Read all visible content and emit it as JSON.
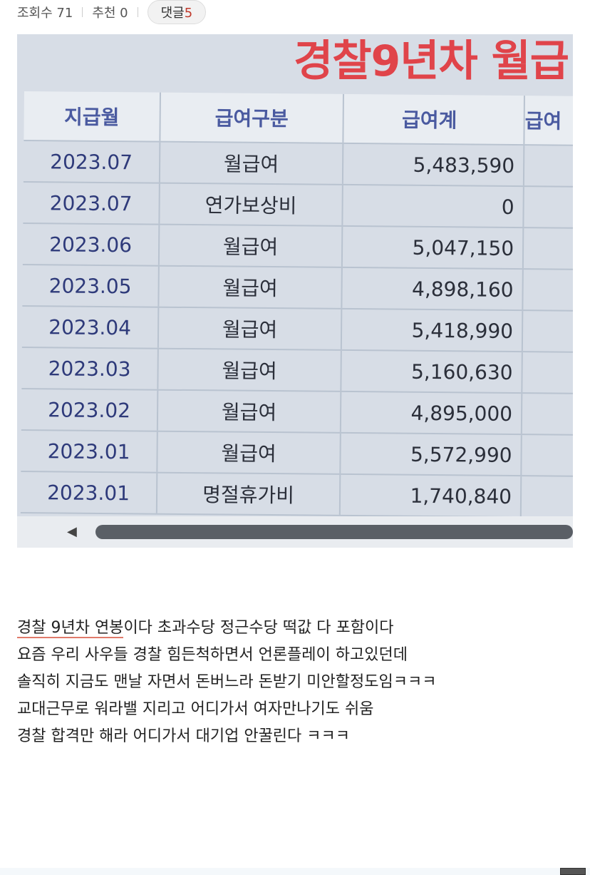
{
  "meta": {
    "views_label": "조회수 71",
    "recommend_label": "추천 0",
    "comments_label": "댓글",
    "comments_count": "5"
  },
  "photo": {
    "overlay_title": "경찰9년차 월급",
    "headers": [
      "지급월",
      "급여구분",
      "급여계",
      "급여"
    ],
    "rows": [
      [
        "2023.07",
        "월급여",
        "5,483,590"
      ],
      [
        "2023.07",
        "연가보상비",
        "0"
      ],
      [
        "2023.06",
        "월급여",
        "5,047,150"
      ],
      [
        "2023.05",
        "월급여",
        "4,898,160"
      ],
      [
        "2023.04",
        "월급여",
        "5,418,990"
      ],
      [
        "2023.03",
        "월급여",
        "5,160,630"
      ],
      [
        "2023.02",
        "월급여",
        "4,895,000"
      ],
      [
        "2023.01",
        "월급여",
        "5,572,990"
      ],
      [
        "2023.01",
        "명절휴가비",
        "1,740,840"
      ]
    ]
  },
  "post": {
    "line1_underlined": "경찰 9년차 연봉",
    "line1_rest": "이다 초과수당 정근수당 떡값 다 포함이다",
    "line2": "요즘 우리 사우들 경찰 힘든척하면서 언론플레이 하고있던데",
    "line3": "솔직히 지금도 맨날 자면서 돈버느라 돈받기 미안할정도임ㅋㅋㅋ",
    "line4": "교대근무로 워라밸 지리고 어디가서 여자만나기도 쉬움",
    "line5": "경찰 합격만 해라 어디가서 대기업 안꿀린다 ㅋㅋㅋ"
  }
}
